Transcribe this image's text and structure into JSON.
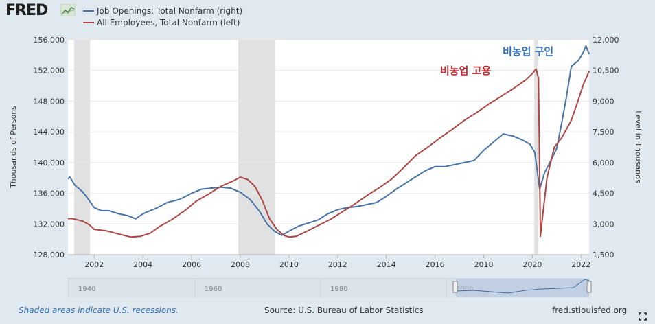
{
  "header": {
    "logo_text": "FRED"
  },
  "legend": [
    {
      "label": "Job Openings: Total Nonfarm (right)",
      "color": "#4572a7"
    },
    {
      "label": "All Employees, Total Nonfarm (left)",
      "color": "#aa4643"
    }
  ],
  "footer": {
    "recession_note": "Shaded areas indicate U.S. recessions.",
    "source": "Source: U.S. Bureau of Labor Statistics",
    "site": "fred.stlouisfed.org"
  },
  "annotations": {
    "job_openings": "비농업 구인",
    "employment": "비농업 고용"
  },
  "navigator": {
    "ticks": [
      "1940",
      "1960",
      "1980",
      "2000"
    ]
  },
  "chart_data": {
    "type": "line",
    "xlabel": "",
    "ylabel_left": "Thousands of Persons",
    "ylabel_right": "Level in Thousands",
    "xlim": [
      2000.92,
      2022.33
    ],
    "ylim_left": [
      128000,
      156000
    ],
    "ylim_right": [
      1500,
      12000
    ],
    "x_ticks": [
      "2002",
      "2004",
      "2006",
      "2008",
      "2010",
      "2012",
      "2014",
      "2016",
      "2018",
      "2020",
      "2022"
    ],
    "y_ticks_left": [
      "128,000",
      "132,000",
      "136,000",
      "140,000",
      "144,000",
      "148,000",
      "152,000",
      "156,000"
    ],
    "y_ticks_right": [
      "1,500",
      "3,000",
      "4,500",
      "6,000",
      "7,500",
      "9,000",
      "10,500",
      "12,000"
    ],
    "recessions": [
      [
        2001.17,
        2001.83
      ],
      [
        2007.92,
        2009.42
      ],
      [
        2020.08,
        2020.25
      ]
    ],
    "series": [
      {
        "name": "Job Openings: Total Nonfarm (right)",
        "axis": "right",
        "color": "#4572a7",
        "points": [
          [
            2000.92,
            5200
          ],
          [
            2001.0,
            5300
          ],
          [
            2001.2,
            4900
          ],
          [
            2001.5,
            4600
          ],
          [
            2001.7,
            4300
          ],
          [
            2002.0,
            3800
          ],
          [
            2002.3,
            3650
          ],
          [
            2002.6,
            3650
          ],
          [
            2003.0,
            3500
          ],
          [
            2003.4,
            3400
          ],
          [
            2003.7,
            3250
          ],
          [
            2004.0,
            3500
          ],
          [
            2004.3,
            3650
          ],
          [
            2004.6,
            3800
          ],
          [
            2005.0,
            4050
          ],
          [
            2005.5,
            4200
          ],
          [
            2006.0,
            4500
          ],
          [
            2006.4,
            4700
          ],
          [
            2006.8,
            4750
          ],
          [
            2007.2,
            4800
          ],
          [
            2007.6,
            4750
          ],
          [
            2008.0,
            4550
          ],
          [
            2008.4,
            4200
          ],
          [
            2008.8,
            3600
          ],
          [
            2009.1,
            3000
          ],
          [
            2009.4,
            2650
          ],
          [
            2009.7,
            2450
          ],
          [
            2010.0,
            2650
          ],
          [
            2010.4,
            2900
          ],
          [
            2010.8,
            3050
          ],
          [
            2011.2,
            3200
          ],
          [
            2011.6,
            3500
          ],
          [
            2012.0,
            3700
          ],
          [
            2012.4,
            3800
          ],
          [
            2012.8,
            3850
          ],
          [
            2013.2,
            3950
          ],
          [
            2013.6,
            4050
          ],
          [
            2014.0,
            4350
          ],
          [
            2014.4,
            4700
          ],
          [
            2014.8,
            5000
          ],
          [
            2015.2,
            5300
          ],
          [
            2015.6,
            5600
          ],
          [
            2016.0,
            5800
          ],
          [
            2016.4,
            5800
          ],
          [
            2016.8,
            5900
          ],
          [
            2017.2,
            6000
          ],
          [
            2017.6,
            6100
          ],
          [
            2018.0,
            6600
          ],
          [
            2018.4,
            7000
          ],
          [
            2018.8,
            7400
          ],
          [
            2019.2,
            7300
          ],
          [
            2019.6,
            7100
          ],
          [
            2019.9,
            6900
          ],
          [
            2020.1,
            6500
          ],
          [
            2020.3,
            4700
          ],
          [
            2020.5,
            5500
          ],
          [
            2020.8,
            6200
          ],
          [
            2021.0,
            6700
          ],
          [
            2021.2,
            7900
          ],
          [
            2021.4,
            9200
          ],
          [
            2021.6,
            10700
          ],
          [
            2021.9,
            11000
          ],
          [
            2022.1,
            11400
          ],
          [
            2022.2,
            11700
          ],
          [
            2022.33,
            11300
          ]
        ]
      },
      {
        "name": "All Employees, Total Nonfarm (left)",
        "axis": "left",
        "color": "#aa4643",
        "points": [
          [
            2000.92,
            132700
          ],
          [
            2001.1,
            132700
          ],
          [
            2001.5,
            132400
          ],
          [
            2001.8,
            131900
          ],
          [
            2002.0,
            131300
          ],
          [
            2002.5,
            131100
          ],
          [
            2003.0,
            130700
          ],
          [
            2003.5,
            130300
          ],
          [
            2003.9,
            130400
          ],
          [
            2004.3,
            130800
          ],
          [
            2004.7,
            131700
          ],
          [
            2005.2,
            132600
          ],
          [
            2005.7,
            133700
          ],
          [
            2006.2,
            135000
          ],
          [
            2006.7,
            135900
          ],
          [
            2007.2,
            136900
          ],
          [
            2007.7,
            137600
          ],
          [
            2008.0,
            138100
          ],
          [
            2008.3,
            137800
          ],
          [
            2008.6,
            136900
          ],
          [
            2008.9,
            135100
          ],
          [
            2009.2,
            132700
          ],
          [
            2009.5,
            131300
          ],
          [
            2009.8,
            130500
          ],
          [
            2010.0,
            130300
          ],
          [
            2010.3,
            130400
          ],
          [
            2010.7,
            131000
          ],
          [
            2011.2,
            131800
          ],
          [
            2011.7,
            132600
          ],
          [
            2012.2,
            133600
          ],
          [
            2012.7,
            134600
          ],
          [
            2013.2,
            135700
          ],
          [
            2013.7,
            136700
          ],
          [
            2014.2,
            137800
          ],
          [
            2014.7,
            139300
          ],
          [
            2015.2,
            140900
          ],
          [
            2015.7,
            142000
          ],
          [
            2016.2,
            143200
          ],
          [
            2016.7,
            144300
          ],
          [
            2017.2,
            145500
          ],
          [
            2017.7,
            146500
          ],
          [
            2018.2,
            147600
          ],
          [
            2018.7,
            148600
          ],
          [
            2019.2,
            149600
          ],
          [
            2019.7,
            150700
          ],
          [
            2020.0,
            151600
          ],
          [
            2020.15,
            152200
          ],
          [
            2020.25,
            151000
          ],
          [
            2020.33,
            130400
          ],
          [
            2020.42,
            133000
          ],
          [
            2020.6,
            138000
          ],
          [
            2020.9,
            142000
          ],
          [
            2021.2,
            143200
          ],
          [
            2021.6,
            145500
          ],
          [
            2021.9,
            148300
          ],
          [
            2022.1,
            150200
          ],
          [
            2022.33,
            151900
          ]
        ]
      }
    ]
  }
}
